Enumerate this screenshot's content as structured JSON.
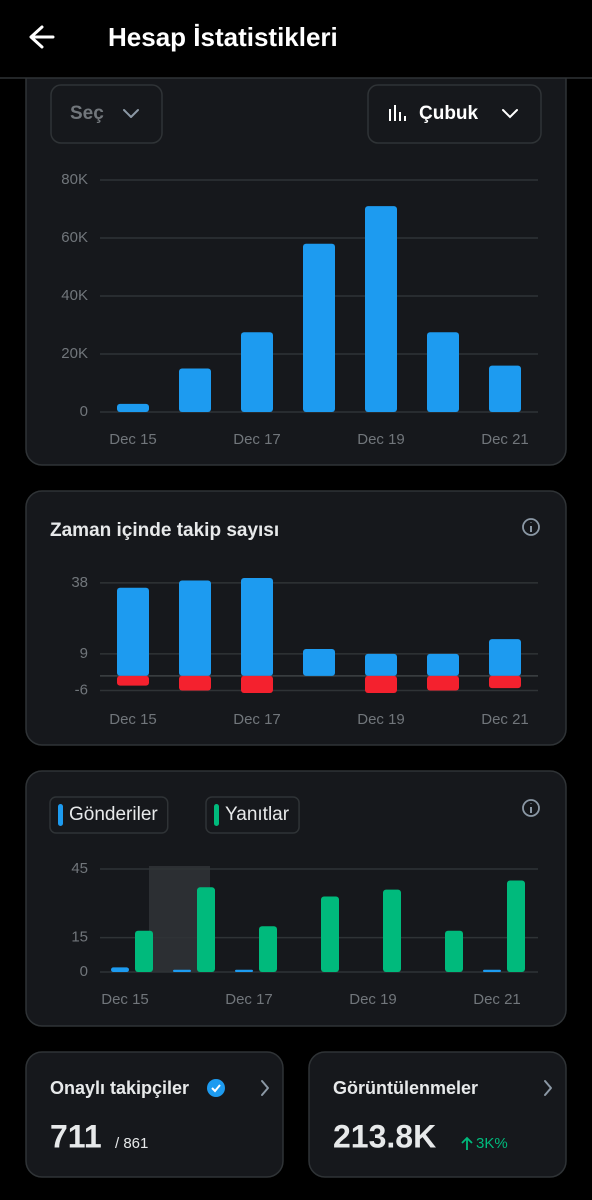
{
  "header": {
    "title": "Hesap İstatistikleri"
  },
  "controls": {
    "filter": "Seç",
    "chart_type": "Çubuk"
  },
  "chart_data": [
    {
      "type": "bar",
      "categories": [
        "Dec 15",
        null,
        "Dec 17",
        null,
        "Dec 19",
        null,
        "Dec 21"
      ],
      "series": [
        {
          "color": "#1d9bf0",
          "values": [
            2800,
            15000,
            27500,
            58000,
            71000,
            27500,
            16000
          ]
        }
      ],
      "ylim": [
        0,
        80000
      ],
      "yticks": [
        0,
        {
          "value": 20000,
          "label": "20K"
        },
        {
          "value": 40000,
          "label": "40K"
        },
        {
          "value": 60000,
          "label": "60K"
        },
        {
          "value": 80000,
          "label": "80K"
        }
      ],
      "grid": true
    },
    {
      "type": "bar",
      "title": "Zaman içinde takip sayısı",
      "stacked": true,
      "categories": [
        "Dec 15",
        null,
        "Dec 17",
        null,
        "Dec 19",
        null,
        "Dec 21"
      ],
      "series": [
        {
          "color": "#1d9bf0",
          "values": [
            36,
            39,
            40,
            11,
            9,
            9,
            15
          ]
        },
        {
          "color": "#f4212e",
          "values": [
            -4,
            -6,
            -7,
            0,
            -7,
            -6,
            -5
          ]
        }
      ],
      "ylim": [
        -7,
        40
      ],
      "yticks": [
        -6,
        9,
        38
      ],
      "grid": true
    },
    {
      "type": "bar",
      "categories": [
        "Dec 15",
        null,
        "Dec 17",
        null,
        "Dec 19",
        null,
        "Dec 21"
      ],
      "series": [
        {
          "name": "Gönderiler",
          "color": "#1d9bf0",
          "values": [
            2,
            1,
            1,
            0,
            0,
            0,
            1
          ]
        },
        {
          "name": "Yanıtlar",
          "color": "#00ba7c",
          "values": [
            18,
            37,
            20,
            33,
            36,
            18,
            40
          ]
        }
      ],
      "ylim": [
        0,
        45
      ],
      "yticks": [
        0,
        15,
        45
      ],
      "grid": true
    }
  ],
  "cards": [
    {
      "title": "Onaylı takipçiler",
      "value": "711",
      "total": "/ 861"
    },
    {
      "title": "Görüntülenmeler",
      "value": "213.8K",
      "change": "3K%"
    }
  ]
}
